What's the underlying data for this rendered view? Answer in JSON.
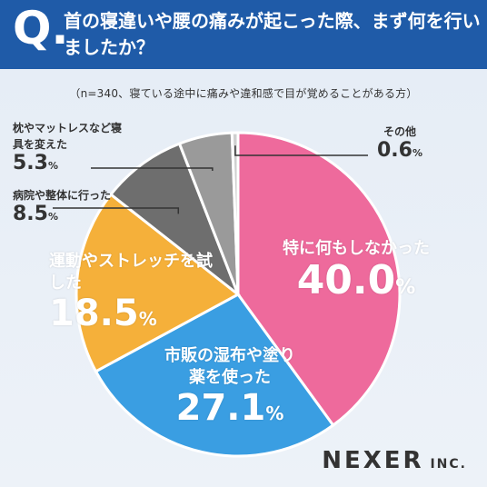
{
  "header": {
    "q": "Q.",
    "title": "首の寝違いや腰の痛みが起こった際、まず何を行いましたか？"
  },
  "note": "（n=340、寝ている途中に痛みや違和感で目が覚めることがある方）",
  "brand": {
    "name": "NEXER",
    "suffix": " INC."
  },
  "colors": {
    "header": "#1f5ba8",
    "pink": "#ee6a9c",
    "blue": "#3a9ee2",
    "yellow": "#f5b03a",
    "dark": "#6e6e6e",
    "gray": "#9a9a9a",
    "light": "#cfcfcf"
  },
  "chart_data": {
    "type": "pie",
    "title": "首の寝違いや腰の痛みが起こった際、まず何を行いましたか？",
    "unit": "%",
    "slices": [
      {
        "label": "特に何もしなかった",
        "value": 40.0,
        "value_text": "40.0",
        "color": "#ee6a9c"
      },
      {
        "label": "市販の湿布や塗り薬を使った",
        "value": 27.1,
        "value_text": "27.1",
        "color": "#3a9ee2"
      },
      {
        "label": "運動やストレッチを試した",
        "value": 18.5,
        "value_text": "18.5",
        "color": "#f5b03a"
      },
      {
        "label": "病院や整体に行った",
        "value": 8.5,
        "value_text": "8.5",
        "color": "#6e6e6e"
      },
      {
        "label": "枕やマットレスなど寝具を変えた",
        "value": 5.3,
        "value_text": "5.3",
        "color": "#9a9a9a"
      },
      {
        "label": "その他",
        "value": 0.6,
        "value_text": "0.6",
        "color": "#cfcfcf"
      }
    ]
  }
}
